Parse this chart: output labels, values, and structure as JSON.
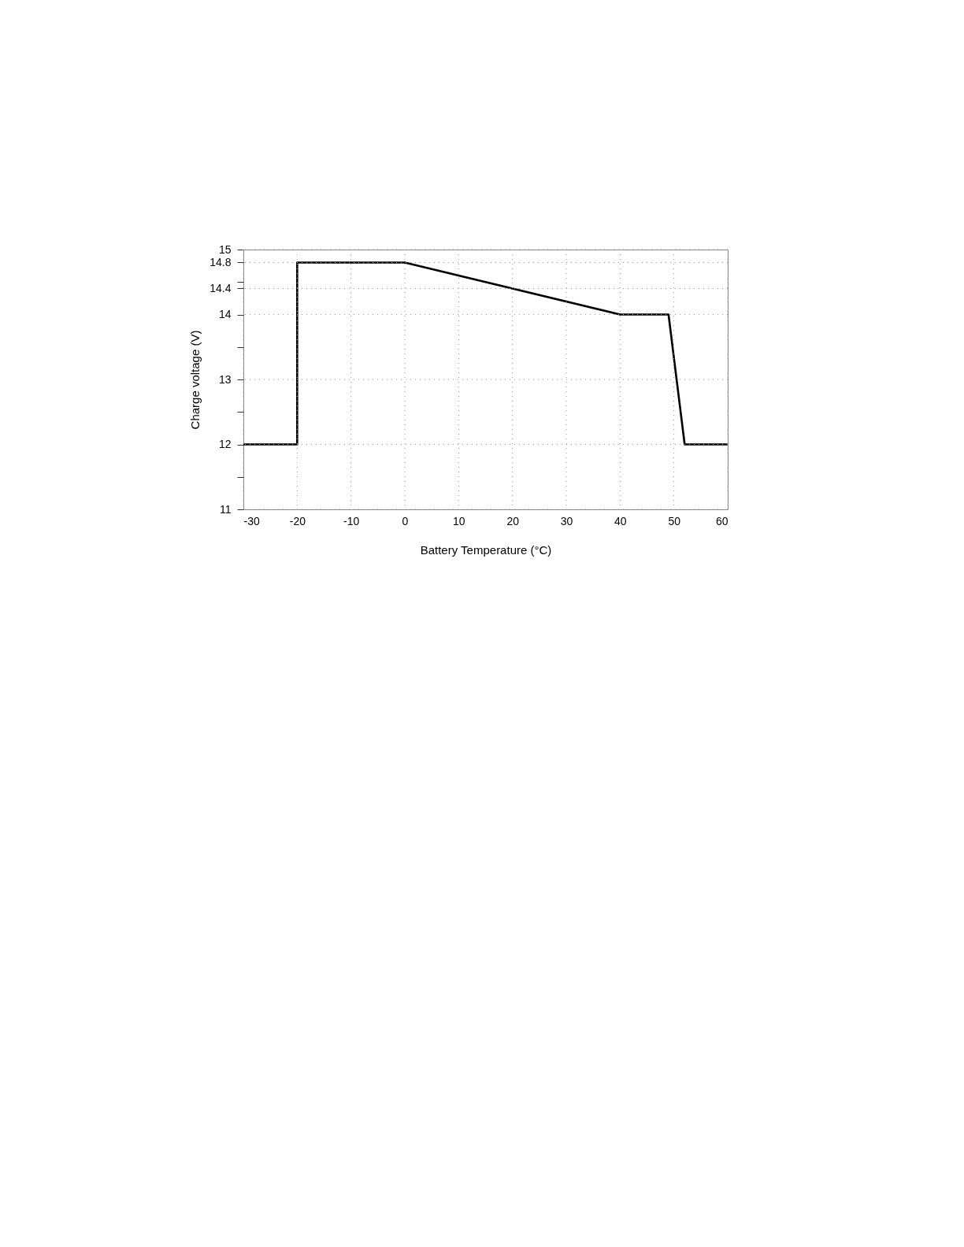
{
  "chart_data": {
    "type": "line",
    "xlabel": "Battery Temperature (°C)",
    "ylabel": "Charge voltage (V)",
    "x": [
      -30,
      -20,
      -20,
      0,
      40,
      49,
      52,
      60
    ],
    "series": [
      {
        "color": "#000000",
        "values": [
          12,
          12,
          14.8,
          14.8,
          14,
          14,
          12,
          12
        ]
      }
    ],
    "xlim": [
      -30,
      60
    ],
    "xticks": [
      -30,
      -20,
      -10,
      0,
      10,
      20,
      30,
      40,
      50,
      60
    ],
    "ylim": [
      11,
      15
    ],
    "yticks": [
      11,
      {
        "value": 11.5,
        "label": null
      },
      12,
      {
        "value": 12.5,
        "label": null
      },
      13,
      {
        "value": 13.5,
        "label": null
      },
      14,
      14.4,
      {
        "value": 14.5,
        "label": null
      },
      14.8,
      15
    ],
    "grid": true,
    "marker": "none",
    "line_style": "solid"
  }
}
